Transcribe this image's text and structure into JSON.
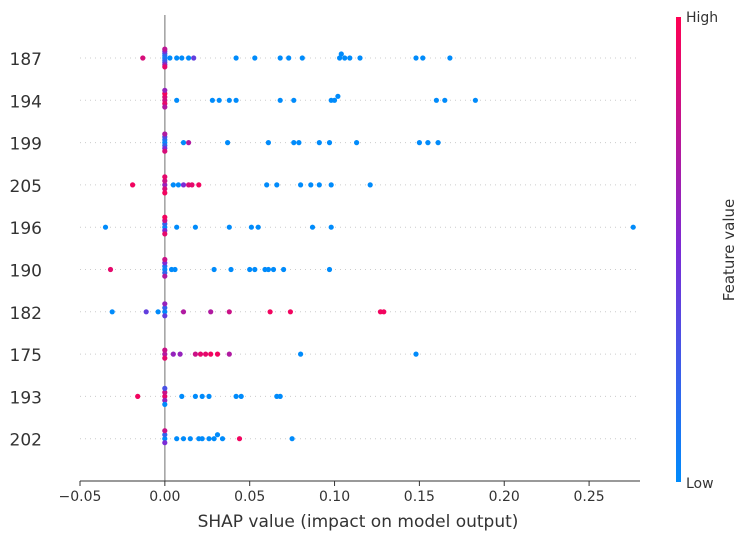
{
  "chart_data": {
    "type": "scatter",
    "subtype": "shap-beeswarm",
    "xlabel": "SHAP value (impact on model output)",
    "xlim": [
      -0.05,
      0.28
    ],
    "x_ticks": [
      -0.05,
      0.0,
      0.05,
      0.1,
      0.15,
      0.2,
      0.25
    ],
    "x_tick_labels": [
      "−0.05",
      "0.00",
      "0.05",
      "0.10",
      "0.15",
      "0.20",
      "0.25"
    ],
    "features": [
      "187",
      "194",
      "199",
      "205",
      "196",
      "190",
      "182",
      "175",
      "193",
      "202"
    ],
    "colorbar": {
      "label": "Feature value",
      "high_label": "High",
      "low_label": "Low",
      "low_color": "#008bfb",
      "high_color": "#ff0052"
    },
    "points": {
      "187": [
        [
          -0.013,
          0.85
        ],
        [
          0,
          0.0
        ],
        [
          0,
          0.1
        ],
        [
          0,
          0.15
        ],
        [
          0,
          0.2
        ],
        [
          0,
          0.3
        ],
        [
          0,
          0.5
        ],
        [
          0,
          0.6
        ],
        [
          0,
          0.75
        ],
        [
          0,
          0.9
        ],
        [
          0.003,
          0.0
        ],
        [
          0.007,
          0.0
        ],
        [
          0.01,
          0.0
        ],
        [
          0.014,
          0.0
        ],
        [
          0.017,
          0.4
        ],
        [
          0.042,
          0.0
        ],
        [
          0.053,
          0.0
        ],
        [
          0.068,
          0.0
        ],
        [
          0.073,
          0.0
        ],
        [
          0.081,
          0.0
        ],
        [
          0.103,
          0.0
        ],
        [
          0.104,
          0.0
        ],
        [
          0.106,
          0.0
        ],
        [
          0.109,
          0.0
        ],
        [
          0.115,
          0.0
        ],
        [
          0.148,
          0.0
        ],
        [
          0.152,
          0.0
        ],
        [
          0.168,
          0.0
        ]
      ],
      "194": [
        [
          0,
          0.8
        ],
        [
          0,
          0.85
        ],
        [
          0,
          0.9
        ],
        [
          0,
          0.95
        ],
        [
          0,
          0.7
        ],
        [
          0,
          0.6
        ],
        [
          0.007,
          0.0
        ],
        [
          0.028,
          0.0
        ],
        [
          0.032,
          0.0
        ],
        [
          0.038,
          0.0
        ],
        [
          0.042,
          0.0
        ],
        [
          0.068,
          0.0
        ],
        [
          0.076,
          0.0
        ],
        [
          0.098,
          0.0
        ],
        [
          0.1,
          0.0
        ],
        [
          0.102,
          0.0
        ],
        [
          0.16,
          0.0
        ],
        [
          0.165,
          0.0
        ],
        [
          0.183,
          0.0
        ]
      ],
      "199": [
        [
          0,
          0.0
        ],
        [
          0,
          0.1
        ],
        [
          0,
          0.2
        ],
        [
          0,
          0.3
        ],
        [
          0,
          0.5
        ],
        [
          0,
          0.7
        ],
        [
          0,
          0.85
        ],
        [
          0.011,
          0.0
        ],
        [
          0.014,
          0.7
        ],
        [
          0.037,
          0.0
        ],
        [
          0.061,
          0.0
        ],
        [
          0.076,
          0.0
        ],
        [
          0.079,
          0.0
        ],
        [
          0.091,
          0.0
        ],
        [
          0.097,
          0.0
        ],
        [
          0.113,
          0.0
        ],
        [
          0.15,
          0.0
        ],
        [
          0.155,
          0.0
        ],
        [
          0.161,
          0.0
        ]
      ],
      "205": [
        [
          -0.019,
          0.95
        ],
        [
          0,
          0.6
        ],
        [
          0,
          0.8
        ],
        [
          0,
          0.85
        ],
        [
          0,
          0.9
        ],
        [
          0,
          0.95
        ],
        [
          0.005,
          0.0
        ],
        [
          0.008,
          0.0
        ],
        [
          0.011,
          0.5
        ],
        [
          0.014,
          0.85
        ],
        [
          0.016,
          0.9
        ],
        [
          0.02,
          0.95
        ],
        [
          0.06,
          0.0
        ],
        [
          0.066,
          0.0
        ],
        [
          0.08,
          0.0
        ],
        [
          0.086,
          0.0
        ],
        [
          0.091,
          0.0
        ],
        [
          0.098,
          0.0
        ],
        [
          0.121,
          0.0
        ]
      ],
      "196": [
        [
          -0.035,
          0.0
        ],
        [
          0,
          0.0
        ],
        [
          0,
          0.2
        ],
        [
          0,
          0.5
        ],
        [
          0,
          0.8
        ],
        [
          0,
          0.9
        ],
        [
          0,
          0.95
        ],
        [
          0.007,
          0.0
        ],
        [
          0.018,
          0.0
        ],
        [
          0.038,
          0.0
        ],
        [
          0.051,
          0.0
        ],
        [
          0.055,
          0.0
        ],
        [
          0.087,
          0.0
        ],
        [
          0.098,
          0.0
        ],
        [
          0.276,
          0.0
        ]
      ],
      "190": [
        [
          -0.032,
          0.9
        ],
        [
          0,
          0.0
        ],
        [
          0,
          0.1
        ],
        [
          0,
          0.2
        ],
        [
          0,
          0.5
        ],
        [
          0,
          0.7
        ],
        [
          0,
          0.8
        ],
        [
          0.004,
          0.0
        ],
        [
          0.006,
          0.0
        ],
        [
          0.029,
          0.0
        ],
        [
          0.039,
          0.0
        ],
        [
          0.05,
          0.0
        ],
        [
          0.053,
          0.0
        ],
        [
          0.059,
          0.0
        ],
        [
          0.061,
          0.0
        ],
        [
          0.064,
          0.0
        ],
        [
          0.07,
          0.0
        ],
        [
          0.097,
          0.0
        ]
      ],
      "182": [
        [
          -0.031,
          0.0
        ],
        [
          -0.011,
          0.4
        ],
        [
          -0.004,
          0.0
        ],
        [
          0,
          0.0
        ],
        [
          0,
          0.2
        ],
        [
          0,
          0.4
        ],
        [
          0,
          0.6
        ],
        [
          0.011,
          0.7
        ],
        [
          0.027,
          0.7
        ],
        [
          0.038,
          0.8
        ],
        [
          0.062,
          0.95
        ],
        [
          0.074,
          0.95
        ],
        [
          0.127,
          0.95
        ],
        [
          0.129,
          0.95
        ]
      ],
      "175": [
        [
          0,
          0.7
        ],
        [
          0,
          0.8
        ],
        [
          0,
          0.9
        ],
        [
          0.005,
          0.6
        ],
        [
          0.009,
          0.6
        ],
        [
          0.018,
          0.8
        ],
        [
          0.021,
          0.9
        ],
        [
          0.024,
          0.9
        ],
        [
          0.027,
          0.95
        ],
        [
          0.031,
          0.95
        ],
        [
          0.038,
          0.7
        ],
        [
          0.08,
          0.0
        ],
        [
          0.148,
          0.0
        ]
      ],
      "193": [
        [
          -0.016,
          0.95
        ],
        [
          0,
          0.9
        ],
        [
          0,
          0.8
        ],
        [
          0,
          0.6
        ],
        [
          0,
          0.3
        ],
        [
          0,
          0.0
        ],
        [
          0.01,
          0.0
        ],
        [
          0.018,
          0.0
        ],
        [
          0.022,
          0.0
        ],
        [
          0.026,
          0.0
        ],
        [
          0.042,
          0.0
        ],
        [
          0.045,
          0.0
        ],
        [
          0.066,
          0.0
        ],
        [
          0.068,
          0.0
        ]
      ],
      "202": [
        [
          0,
          0.0
        ],
        [
          0,
          0.2
        ],
        [
          0,
          0.5
        ],
        [
          0,
          0.8
        ],
        [
          0.007,
          0.0
        ],
        [
          0.011,
          0.0
        ],
        [
          0.015,
          0.0
        ],
        [
          0.02,
          0.0
        ],
        [
          0.022,
          0.0
        ],
        [
          0.026,
          0.0
        ],
        [
          0.029,
          0.0
        ],
        [
          0.031,
          0.0
        ],
        [
          0.034,
          0.0
        ],
        [
          0.044,
          0.95
        ],
        [
          0.075,
          0.0
        ]
      ]
    }
  }
}
